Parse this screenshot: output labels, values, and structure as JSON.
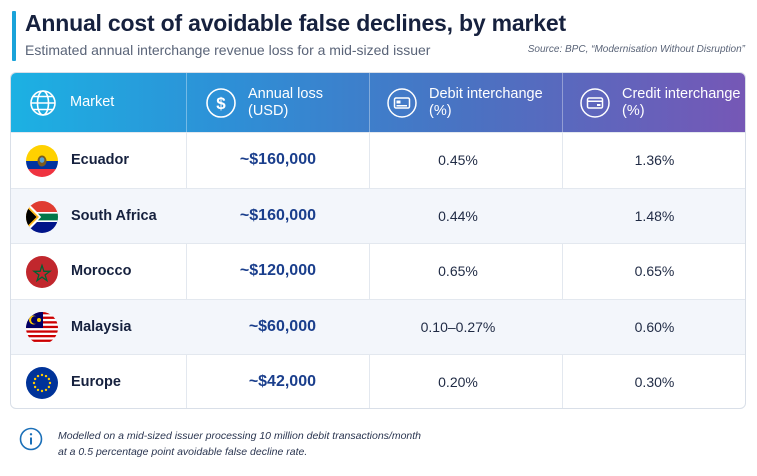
{
  "header": {
    "title": "Annual cost of avoidable false declines, by market",
    "subtitle": "Estimated annual interchange revenue loss for a mid-sized issuer",
    "source": "Source: BPC, “Modernisation Without Disruption”"
  },
  "table": {
    "columns": [
      {
        "label": "Market",
        "icon": "globe-icon"
      },
      {
        "label": "Annual loss\n(USD)",
        "icon": "dollar-icon"
      },
      {
        "label": "Debit interchange\n(%)",
        "icon": "debit-card-icon"
      },
      {
        "label": "Credit interchange\n(%)",
        "icon": "credit-card-icon"
      }
    ],
    "rows": [
      {
        "market": "Ecuador",
        "flag": "ecuador-flag-icon",
        "loss": "~$160,000",
        "debit": "0.45%",
        "credit": "1.36%"
      },
      {
        "market": "South Africa",
        "flag": "south-africa-flag-icon",
        "loss": "~$160,000",
        "debit": "0.44%",
        "credit": "1.48%"
      },
      {
        "market": "Morocco",
        "flag": "morocco-flag-icon",
        "loss": "~$120,000",
        "debit": "0.65%",
        "credit": "0.65%"
      },
      {
        "market": "Malaysia",
        "flag": "malaysia-flag-icon",
        "loss": "~$60,000",
        "debit": "0.10–0.27%",
        "credit": "0.60%"
      },
      {
        "market": "Europe",
        "flag": "eu-flag-icon",
        "loss": "~$42,000",
        "debit": "0.20%",
        "credit": "0.30%"
      }
    ]
  },
  "footnote": {
    "icon": "info-icon",
    "line1": "Modelled on a mid-sized issuer processing 10 million debit transactions/month",
    "line2": "at a 0.5 percentage point avoidable false decline rate."
  },
  "colors": {
    "accent": "#1aa3d9",
    "header_gradient_start": "#1cb1e3",
    "header_gradient_end": "#7657b6",
    "loss_text": "#1a3e8c"
  }
}
